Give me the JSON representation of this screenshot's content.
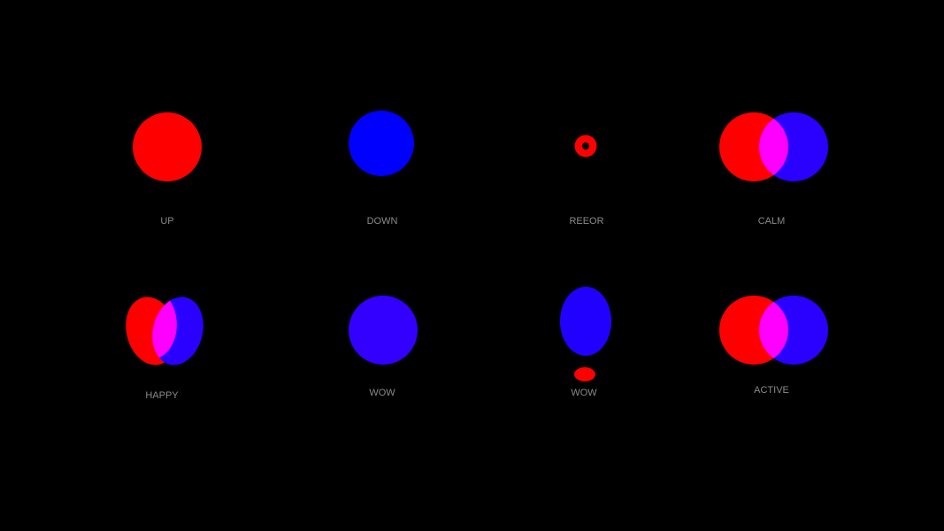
{
  "colors": {
    "background": "#000000",
    "red": "#ff0000",
    "blue": "#0000ff",
    "violet_blue": "#2a00ff",
    "overlap": "#ff00ff",
    "label": "#8a8a8a"
  },
  "states": [
    {
      "label": "UP",
      "icon": "red-circle-icon"
    },
    {
      "label": "DOWN",
      "icon": "blue-circle-icon"
    },
    {
      "label": "REEOR",
      "icon": "red-ring-icon"
    },
    {
      "label": "CALM",
      "icon": "overlapping-circles-icon"
    },
    {
      "label": "HAPPY",
      "icon": "tilted-overlapping-ellipses-icon"
    },
    {
      "label": "WOW",
      "icon": "violet-circle-icon"
    },
    {
      "label": "WOW",
      "icon": "ellipse-with-dot-icon"
    },
    {
      "label": "ACTIVE",
      "icon": "overlapping-circles-icon"
    }
  ]
}
